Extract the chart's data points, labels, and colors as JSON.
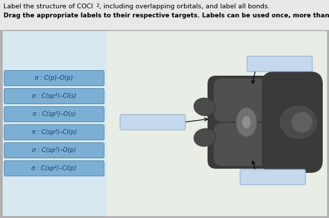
{
  "title_line1": "Label the structure of COCl",
  "title_subscript": "2",
  "title_suffix": ", including overlapping orbitals, and label all bonds.",
  "subtitle": "Drag the appropriate labels to their respective targets. Labels can be used once, more than once, or not at all.",
  "labels": [
    "π : C(p)–O(p)",
    "σ : C(sp²)–Cl(s)",
    "π : C(sp²)–O(s)",
    "π : C(sp²)–Cl(p)",
    "σ : C(sp²)–O(p)",
    "σ : C(sp²)–Cl(p)"
  ],
  "label_box_color": "#7bafd4",
  "label_box_edge": "#5a8ab0",
  "label_text_color": "#1a3a6e",
  "outer_bg": "#b0b0b0",
  "top_bg": "#e8e8e8",
  "panel_bg": "#f0f0f0",
  "left_panel_bg": "#d8e8f0",
  "right_panel_bg": "#e8ede5",
  "blank_box_color": "#c5d8ee",
  "blank_box_edge": "#8aabcc"
}
